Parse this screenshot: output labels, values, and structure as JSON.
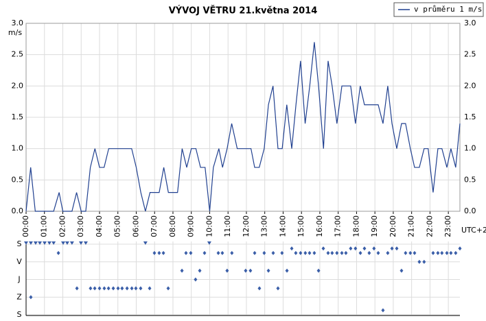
{
  "chart_data": [
    {
      "type": "line",
      "title": "VÝVOJ VĚTRU  21.května 2014",
      "y_label": "m/s",
      "x_label": "UTC+2",
      "x": [
        0,
        0.25,
        0.5,
        1.5,
        1.8,
        2.0,
        2.5,
        2.75,
        3.0,
        3.25,
        3.5,
        3.75,
        4.0,
        4.25,
        4.5,
        5.75,
        6.0,
        6.25,
        6.5,
        6.75,
        7.25,
        7.5,
        7.75,
        8.25,
        8.5,
        8.75,
        9.0,
        9.25,
        9.5,
        9.75,
        10.0,
        10.2,
        10.5,
        10.7,
        10.95,
        11.2,
        11.5,
        12.25,
        12.45,
        12.7,
        12.97,
        13.2,
        13.45,
        13.72,
        13.95,
        14.2,
        14.47,
        14.7,
        14.95,
        15.2,
        15.45,
        15.7,
        15.93,
        16.2,
        16.45,
        16.67,
        16.93,
        17.2,
        17.68,
        17.94,
        18.2,
        18.43,
        19.18,
        19.44,
        19.7,
        19.93,
        20.19,
        20.45,
        20.67,
        20.93,
        21.16,
        21.42,
        21.68,
        21.9,
        22.17,
        22.43,
        22.65,
        22.92,
        23.14,
        23.4,
        23.63
      ],
      "series": [
        {
          "name": "v průměru 1 m/s",
          "color": "#1f3f8f",
          "values": [
            0,
            0.7,
            0,
            0,
            0.3,
            0,
            0,
            0.3,
            0,
            0,
            0.7,
            1.0,
            0.7,
            0.7,
            1.0,
            1.0,
            0.7,
            0.3,
            0,
            0.3,
            0.3,
            0.7,
            0.3,
            0.3,
            1.0,
            0.7,
            1.0,
            1.0,
            0.7,
            0.7,
            0,
            0.7,
            1.0,
            0.7,
            1.0,
            1.4,
            1.0,
            1.0,
            0.7,
            0.7,
            1.0,
            1.7,
            2.0,
            1.0,
            1.0,
            1.7,
            1.0,
            1.7,
            2.4,
            1.4,
            2.0,
            2.7,
            2.0,
            1.0,
            2.4,
            2.0,
            1.4,
            2.0,
            2.0,
            1.4,
            2.0,
            1.7,
            1.7,
            1.4,
            2.0,
            1.4,
            1.0,
            1.4,
            1.4,
            1.0,
            0.7,
            0.7,
            1.0,
            1.0,
            0.3,
            1.0,
            1.0,
            0.7,
            1.0,
            0.7,
            1.4
          ]
        }
      ],
      "xlim": [
        0,
        23.63
      ],
      "xticks": [
        {
          "value": 0,
          "label": "00:00"
        },
        {
          "value": 1,
          "label": "01:00"
        },
        {
          "value": 2,
          "label": "02:00"
        },
        {
          "value": 3,
          "label": "03:00"
        },
        {
          "value": 4,
          "label": "04:00"
        },
        {
          "value": 5,
          "label": "05:00"
        },
        {
          "value": 6,
          "label": "06:00"
        },
        {
          "value": 7,
          "label": "07:00"
        },
        {
          "value": 8,
          "label": "08:00"
        },
        {
          "value": 9,
          "label": "09:00"
        },
        {
          "value": 10,
          "label": "10:00"
        },
        {
          "value": 11,
          "label": "11:00"
        },
        {
          "value": 12,
          "label": "12:00"
        },
        {
          "value": 13,
          "label": "13:00"
        },
        {
          "value": 14,
          "label": "14:00"
        },
        {
          "value": 15,
          "label": "15:00"
        },
        {
          "value": 16,
          "label": "16:00"
        },
        {
          "value": 17,
          "label": "17:00"
        },
        {
          "value": 18,
          "label": "18:00"
        },
        {
          "value": 19,
          "label": "19:00"
        },
        {
          "value": 20,
          "label": "20:00"
        },
        {
          "value": 21,
          "label": "21:00"
        },
        {
          "value": 22,
          "label": "22:00"
        },
        {
          "value": 23,
          "label": "23:00"
        }
      ],
      "ylim": [
        0,
        3
      ],
      "yticks": [
        {
          "value": 0,
          "label": "0.0"
        },
        0.5,
        {
          "value": 1,
          "label": "1.0"
        },
        1.5,
        {
          "value": 2,
          "label": "2.0"
        },
        2.5,
        {
          "value": 3,
          "label": "3.0"
        }
      ],
      "grid": true,
      "legend": "top-right"
    },
    {
      "type": "scatter",
      "color": "#3a5ea8",
      "x": [
        0.26,
        1.76,
        2.77,
        3.51,
        3.74,
        4.0,
        4.26,
        4.49,
        4.75,
        5.01,
        5.23,
        5.5,
        5.76,
        5.98,
        6.24,
        6.73,
        6.99,
        7.25,
        7.48,
        7.74,
        8.49,
        8.71,
        8.97,
        9.23,
        9.46,
        9.72,
        10.47,
        10.69,
        10.95,
        11.21,
        11.96,
        12.22,
        12.45,
        12.71,
        12.97,
        13.2,
        13.46,
        13.72,
        13.94,
        14.21,
        14.47,
        14.69,
        14.95,
        15.21,
        15.44,
        15.7,
        15.93,
        16.19,
        16.45,
        16.67,
        16.93,
        17.2,
        17.42,
        17.68,
        17.94,
        18.21,
        18.43,
        18.69,
        18.95,
        19.18,
        19.44,
        19.7,
        19.93,
        20.19,
        20.45,
        20.67,
        20.93,
        21.16,
        21.42,
        21.68,
        22.17,
        22.43,
        22.65,
        22.92,
        23.14,
        23.4,
        23.63
      ],
      "values": [
        270,
        45,
        225,
        225,
        225,
        225,
        225,
        225,
        225,
        225,
        225,
        225,
        225,
        225,
        225,
        225,
        45,
        45,
        45,
        225,
        135,
        45,
        45,
        180,
        135,
        45,
        45,
        45,
        135,
        45,
        135,
        135,
        45,
        225,
        45,
        135,
        45,
        225,
        45,
        135,
        22,
        45,
        45,
        45,
        45,
        45,
        135,
        22,
        45,
        45,
        45,
        45,
        45,
        22,
        22,
        45,
        22,
        45,
        22,
        45,
        337,
        45,
        22,
        22,
        135,
        45,
        45,
        45,
        90,
        90,
        45,
        45,
        45,
        45,
        45,
        45,
        22
      ],
      "calm": [
        0,
        0.26,
        0.52,
        0.75,
        1.01,
        1.27,
        1.5,
        2.02,
        2.24,
        2.5,
        2.99,
        3.25,
        6.5,
        9.98
      ],
      "xlim": [
        0,
        23.63
      ],
      "ylim": [
        0,
        360
      ],
      "yticks": [
        {
          "value": 0,
          "label": "S"
        },
        {
          "value": 90,
          "label": "V"
        },
        {
          "value": 180,
          "label": "J"
        },
        {
          "value": 270,
          "label": "Z"
        },
        {
          "value": 360,
          "label": "S"
        }
      ]
    }
  ]
}
